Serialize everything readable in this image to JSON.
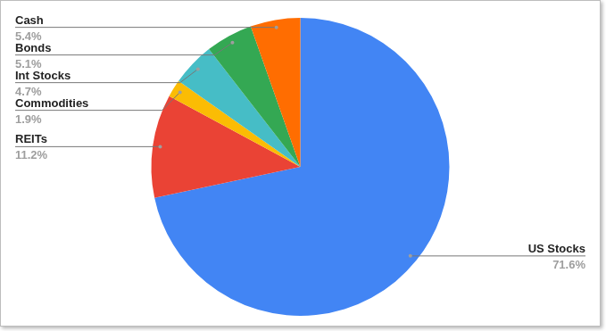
{
  "chart_data": {
    "type": "pie",
    "categories": [
      "US Stocks",
      "REITs",
      "Commodities",
      "Int Stocks",
      "Bonds",
      "Cash"
    ],
    "values": [
      71.6,
      11.2,
      1.9,
      4.7,
      5.1,
      5.4
    ],
    "value_labels": [
      "71.6%",
      "11.2%",
      "1.9%",
      "4.7%",
      "5.1%",
      "5.4%"
    ],
    "colors": [
      "#4285f4",
      "#ea4335",
      "#fbbc04",
      "#46bdc6",
      "#34a853",
      "#ff6d01"
    ],
    "data_labels": true
  }
}
